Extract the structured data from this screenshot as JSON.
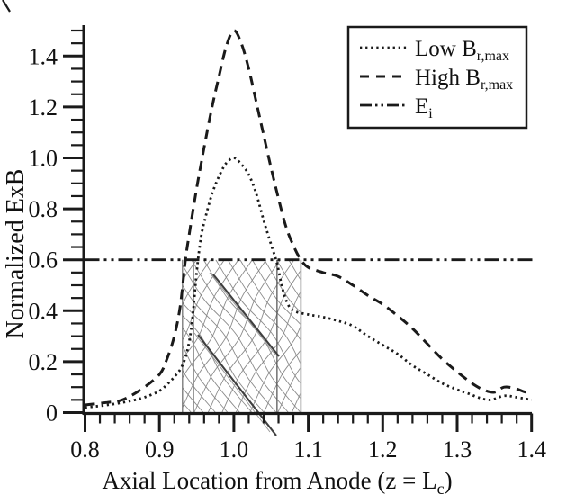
{
  "colors": {
    "ink": "#1a1a1a",
    "hatch_line": "#8a8a8a",
    "hatch_bold": "#3f3f3f",
    "boundary_dark": "#5a5a5a",
    "boundary_mid": "#888888",
    "boundary_light": "#b5b5b5",
    "background": "#ffffff"
  },
  "chart_data": {
    "type": "line",
    "title": "",
    "ylabel": "Normalized ExB",
    "xlabel_parts": {
      "prefix": "Axial Location from Anode (z = L",
      "sub": "c",
      "suffix": ")"
    },
    "xlim": [
      0.8,
      1.4
    ],
    "ylim": [
      0,
      1.52
    ],
    "grid": false,
    "legend_position": "top-right",
    "x_ticks": {
      "values": [
        0.8,
        0.9,
        1.0,
        1.1,
        1.2,
        1.3,
        1.4
      ],
      "labels": [
        "0.8",
        "0.9",
        "1.0",
        "1.1",
        "1.2",
        "1.3",
        "1.4"
      ],
      "minor_step": 0.02
    },
    "y_ticks": {
      "values": [
        0,
        0.2,
        0.4,
        0.6,
        0.8,
        1.0,
        1.2,
        1.4
      ],
      "labels": [
        "0",
        "0.2",
        "0.4",
        "0.6",
        "0.8",
        "1.0",
        "1.2",
        "1.4"
      ],
      "minor_step": 0.05,
      "minor_max": 1.5
    },
    "series": [
      {
        "name_main": "Low B",
        "name_sub": "r,max",
        "style": "dotted",
        "points": [
          [
            0.8,
            0.02
          ],
          [
            0.83,
            0.03
          ],
          [
            0.86,
            0.045
          ],
          [
            0.88,
            0.06
          ],
          [
            0.9,
            0.085
          ],
          [
            0.91,
            0.11
          ],
          [
            0.92,
            0.14
          ],
          [
            0.93,
            0.18
          ],
          [
            0.938,
            0.25
          ],
          [
            0.944,
            0.36
          ],
          [
            0.95,
            0.55
          ],
          [
            0.956,
            0.69
          ],
          [
            0.963,
            0.78
          ],
          [
            0.972,
            0.87
          ],
          [
            0.982,
            0.94
          ],
          [
            0.99,
            0.98
          ],
          [
            1.0,
            1.0
          ],
          [
            1.01,
            0.975
          ],
          [
            1.02,
            0.935
          ],
          [
            1.03,
            0.86
          ],
          [
            1.04,
            0.755
          ],
          [
            1.05,
            0.66
          ],
          [
            1.058,
            0.585
          ],
          [
            1.065,
            0.49
          ],
          [
            1.072,
            0.43
          ],
          [
            1.08,
            0.4
          ],
          [
            1.1,
            0.385
          ],
          [
            1.12,
            0.375
          ],
          [
            1.14,
            0.36
          ],
          [
            1.16,
            0.34
          ],
          [
            1.18,
            0.3
          ],
          [
            1.2,
            0.265
          ],
          [
            1.22,
            0.23
          ],
          [
            1.24,
            0.185
          ],
          [
            1.26,
            0.15
          ],
          [
            1.28,
            0.115
          ],
          [
            1.3,
            0.09
          ],
          [
            1.315,
            0.075
          ],
          [
            1.33,
            0.058
          ],
          [
            1.345,
            0.05
          ],
          [
            1.363,
            0.066
          ],
          [
            1.38,
            0.06
          ],
          [
            1.4,
            0.05
          ]
        ]
      },
      {
        "name_main": "High B",
        "name_sub": "r,max",
        "style": "dashed",
        "points": [
          [
            0.8,
            0.03
          ],
          [
            0.83,
            0.04
          ],
          [
            0.85,
            0.05
          ],
          [
            0.875,
            0.09
          ],
          [
            0.9,
            0.15
          ],
          [
            0.91,
            0.21
          ],
          [
            0.92,
            0.3
          ],
          [
            0.928,
            0.42
          ],
          [
            0.935,
            0.6
          ],
          [
            0.94,
            0.7
          ],
          [
            0.95,
            0.88
          ],
          [
            0.96,
            1.04
          ],
          [
            0.97,
            1.19
          ],
          [
            0.98,
            1.32
          ],
          [
            0.99,
            1.44
          ],
          [
            1.0,
            1.5
          ],
          [
            1.01,
            1.45
          ],
          [
            1.02,
            1.35
          ],
          [
            1.03,
            1.22
          ],
          [
            1.04,
            1.09
          ],
          [
            1.05,
            0.96
          ],
          [
            1.06,
            0.84
          ],
          [
            1.07,
            0.73
          ],
          [
            1.08,
            0.655
          ],
          [
            1.09,
            0.6
          ],
          [
            1.1,
            0.57
          ],
          [
            1.12,
            0.55
          ],
          [
            1.14,
            0.535
          ],
          [
            1.16,
            0.5
          ],
          [
            1.18,
            0.46
          ],
          [
            1.2,
            0.425
          ],
          [
            1.22,
            0.38
          ],
          [
            1.24,
            0.33
          ],
          [
            1.26,
            0.27
          ],
          [
            1.28,
            0.21
          ],
          [
            1.3,
            0.16
          ],
          [
            1.32,
            0.115
          ],
          [
            1.335,
            0.09
          ],
          [
            1.35,
            0.08
          ],
          [
            1.363,
            0.1
          ],
          [
            1.378,
            0.095
          ],
          [
            1.39,
            0.082
          ],
          [
            1.4,
            0.075
          ]
        ]
      },
      {
        "name_main": "E",
        "name_sub": "i",
        "style": "dashdotdot",
        "points": [
          [
            0.8,
            0.6
          ],
          [
            1.402,
            0.6
          ]
        ]
      }
    ],
    "hatch_region": {
      "description": "irregular cross-hatched zone between curve crossings of E_i level",
      "x_start": 0.931,
      "x_end": 1.09,
      "y_bottom": 0,
      "y_top": 0.6,
      "boundary_lines_x": [
        0.931,
        0.946,
        1.058,
        1.09
      ]
    },
    "e_i_level": 0.6
  }
}
